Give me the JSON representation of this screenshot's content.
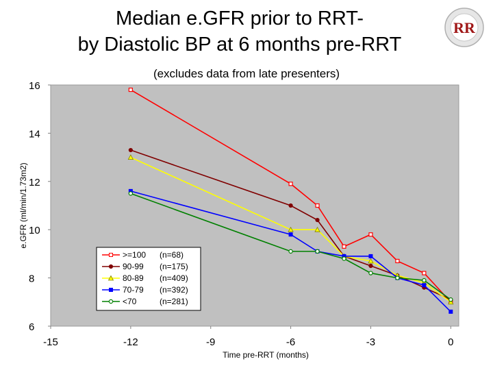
{
  "logo": {
    "text": "RR"
  },
  "chart_data": {
    "type": "line",
    "title_lines": [
      "Median e.GFR prior to RRT-",
      "by Diastolic BP at 6 months pre-RRT"
    ],
    "subtitle": "(excludes data from late presenters)",
    "xlabel": "Time pre-RRT (months)",
    "ylabel": "e.GFR (ml/min/1.73m2)",
    "xlim": [
      -15,
      0.3
    ],
    "ylim": [
      6,
      16
    ],
    "xticks": [
      -15,
      -12,
      -9,
      -6,
      -3,
      0
    ],
    "yticks": [
      6,
      8,
      10,
      12,
      14,
      16
    ],
    "grid": false,
    "legend_position": "bottom-left",
    "colors": {
      "plot_bg": "#c0c0c0",
      "legend_bg": "#ffffff"
    },
    "series": [
      {
        "name": ">=100",
        "n_label": "(n=68)",
        "color": "#ff0000",
        "marker": "square-open",
        "x": [
          -12,
          -6,
          -5,
          -4,
          -3,
          -2,
          -1,
          0
        ],
        "y": [
          15.8,
          11.9,
          11.0,
          9.3,
          9.8,
          8.7,
          8.2,
          7.0
        ]
      },
      {
        "name": "90-99",
        "n_label": "(n=175)",
        "color": "#800000",
        "marker": "circle-filled",
        "x": [
          -12,
          -6,
          -5,
          -4,
          -3,
          -2,
          -1,
          0
        ],
        "y": [
          13.3,
          11.0,
          10.4,
          8.9,
          8.5,
          8.1,
          7.6,
          7.1
        ]
      },
      {
        "name": "80-89",
        "n_label": "(n=409)",
        "color": "#ffff00",
        "marker": "triangle",
        "x": [
          -12,
          -6,
          -5,
          -4,
          -3,
          -2,
          -1,
          0
        ],
        "y": [
          13.0,
          10.0,
          10.0,
          8.9,
          8.7,
          8.1,
          7.8,
          7.0
        ]
      },
      {
        "name": "70-79",
        "n_label": "(n=392)",
        "color": "#0000ff",
        "marker": "square-filled",
        "x": [
          -12,
          -6,
          -5,
          -4,
          -3,
          -2,
          -1,
          0
        ],
        "y": [
          11.6,
          9.8,
          9.1,
          8.9,
          8.9,
          8.0,
          7.7,
          6.6
        ]
      },
      {
        "name": "<70",
        "n_label": "(n=281)",
        "color": "#008000",
        "marker": "circle-open",
        "x": [
          -12,
          -6,
          -5,
          -4,
          -3,
          -2,
          -1,
          0
        ],
        "y": [
          11.5,
          9.1,
          9.1,
          8.8,
          8.2,
          8.0,
          7.9,
          7.1
        ]
      }
    ]
  }
}
